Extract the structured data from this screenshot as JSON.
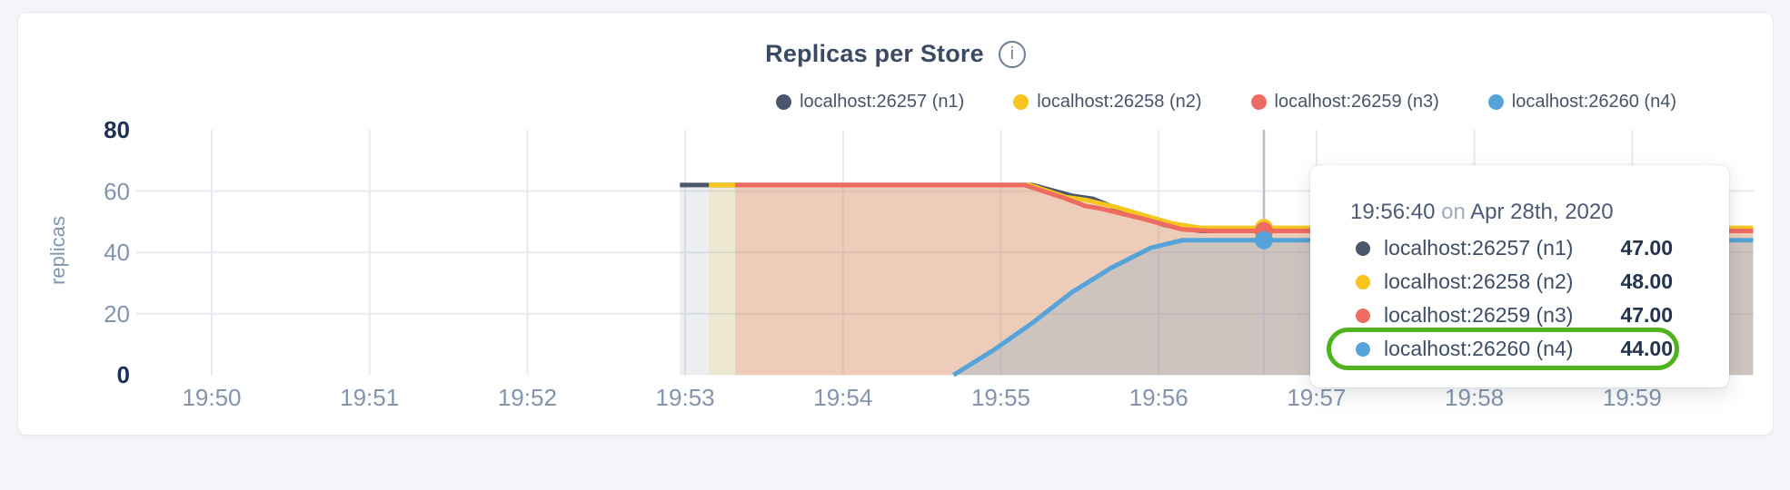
{
  "header": {
    "title": "Replicas per Store",
    "info_icon": "i"
  },
  "legend": {
    "items": [
      {
        "label": "localhost:26257 (n1)",
        "color": "#49566c"
      },
      {
        "label": "localhost:26258 (n2)",
        "color": "#f7c51d"
      },
      {
        "label": "localhost:26259 (n3)",
        "color": "#ee6b61"
      },
      {
        "label": "localhost:26260 (n4)",
        "color": "#55a3d8"
      }
    ]
  },
  "chart_data": {
    "type": "area",
    "title": "Replicas per Store",
    "xlabel": "",
    "ylabel": "replicas",
    "ylim": [
      0,
      80
    ],
    "yticks": [
      0,
      20,
      40,
      60,
      80
    ],
    "ygrid": [
      20,
      40,
      60
    ],
    "grid": true,
    "legend_position": "top-right",
    "xticks": [
      "19:50",
      "19:51",
      "19:52",
      "19:53",
      "19:54",
      "19:55",
      "19:56",
      "19:57",
      "19:58",
      "19:59"
    ],
    "x_unit": "seconds after 19:50:00",
    "series": [
      {
        "name": "localhost:26257 (n1)",
        "color": "#49566c",
        "fill_opacity": 0.1,
        "points": [
          [
            178,
            62
          ],
          [
            312,
            62
          ],
          [
            327,
            58.5
          ],
          [
            335,
            57.5
          ],
          [
            345,
            54
          ],
          [
            362,
            49
          ],
          [
            376,
            47
          ],
          [
            586,
            47
          ]
        ]
      },
      {
        "name": "localhost:26258 (n2)",
        "color": "#f7c51d",
        "fill_opacity": 0.14,
        "points": [
          [
            189,
            62
          ],
          [
            311,
            62
          ],
          [
            325,
            58
          ],
          [
            333,
            57
          ],
          [
            345,
            54.5
          ],
          [
            365,
            49.5
          ],
          [
            376,
            48
          ],
          [
            586,
            48
          ]
        ]
      },
      {
        "name": "localhost:26259 (n3)",
        "color": "#ee6b61",
        "fill_opacity": 0.22,
        "points": [
          [
            199,
            62
          ],
          [
            309,
            62
          ],
          [
            324,
            57.8
          ],
          [
            332,
            55.2
          ],
          [
            337,
            54.5
          ],
          [
            354,
            51
          ],
          [
            369,
            47.5
          ],
          [
            380,
            47
          ],
          [
            586,
            47
          ]
        ]
      },
      {
        "name": "localhost:26260 (n4)",
        "color": "#55a3d8",
        "fill_opacity": 0.2,
        "points": [
          [
            282,
            0
          ],
          [
            297,
            8
          ],
          [
            312,
            17
          ],
          [
            327,
            27
          ],
          [
            342,
            35
          ],
          [
            357,
            41.5
          ],
          [
            369,
            44
          ],
          [
            586,
            44
          ]
        ]
      }
    ],
    "hover": {
      "t": 400,
      "time": "19:56:40",
      "dot_values": [
        47,
        48,
        47,
        44
      ],
      "line_color": "#b6bdc9"
    }
  },
  "tooltip": {
    "time": "19:56:40",
    "connector": "on",
    "date": "Apr 28th, 2020",
    "highlight_color": "#4fb320",
    "rows": [
      {
        "label": "localhost:26257 (n1)",
        "value": "47.00",
        "color": "#49566c",
        "highlighted": false
      },
      {
        "label": "localhost:26258 (n2)",
        "value": "48.00",
        "color": "#f7c51d",
        "highlighted": false
      },
      {
        "label": "localhost:26259 (n3)",
        "value": "47.00",
        "color": "#ee6b61",
        "highlighted": false
      },
      {
        "label": "localhost:26260 (n4)",
        "value": "44.00",
        "color": "#55a3d8",
        "highlighted": true
      }
    ]
  }
}
